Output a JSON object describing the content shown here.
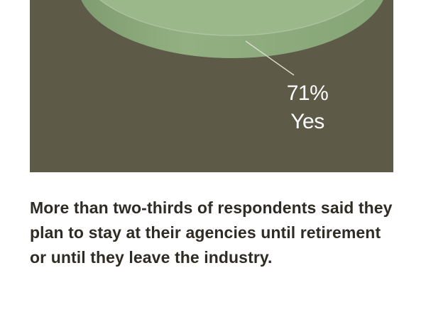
{
  "chart_data": {
    "type": "pie",
    "slices": [
      {
        "label": "Yes",
        "value": 71,
        "value_label": "71%",
        "color": "#9bb88a"
      }
    ]
  },
  "caption": "More than two-thirds of respondents said they plan to stay at their agencies until retirement or until they leave the industry.",
  "colors": {
    "panel_background": "#5e5a48",
    "pie_top": "#9bb88a",
    "pie_side": "#8dac7c",
    "leader_line": "#d8dccf",
    "caption_text": "#2f2c25"
  }
}
